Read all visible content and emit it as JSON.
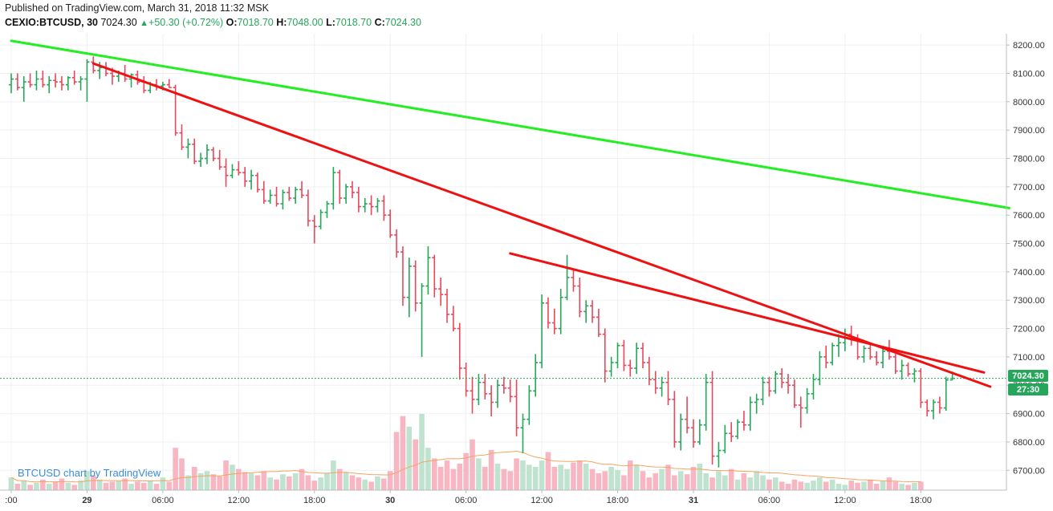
{
  "header": {
    "published": "Published on TradingView.com, March 31, 2018 11:32 MSK",
    "symbol": "CEXIO:BTCUSD, 30",
    "last": "7024.30",
    "change_arrow": "▲",
    "change": "+50.30 (+0.72%)",
    "o_label": "O:",
    "o_value": "7018.70",
    "h_label": "H:",
    "h_value": "7048.00",
    "l_label": "L:",
    "l_value": "7018.70",
    "c_label": "C:",
    "c_value": "7024.30"
  },
  "watermark": "BTCUSD chart by TradingView",
  "price_badge": "7024.30",
  "countdown_badge": "27:30",
  "colors": {
    "up": "#26a65b",
    "down": "#e8475c",
    "vol_up": "#bfe3cf",
    "vol_down": "#f7b6c2",
    "trend_green": "#22ee22",
    "trend_red": "#ee1111",
    "ma_line": "#f4a460",
    "grid": "#eef0f3"
  },
  "chart_data": {
    "type": "ohlc",
    "symbol": "CEXIO:BTCUSD",
    "interval": "30",
    "ylim": [
      6630,
      8240
    ],
    "y_ticks": [
      "8200.00",
      "8100.00",
      "8000.00",
      "7900.00",
      "7800.00",
      "7700.00",
      "7600.00",
      "7500.00",
      "7400.00",
      "7300.00",
      "7200.00",
      "7100.00",
      "7000.00",
      "6900.00",
      "6800.00",
      "6700.00"
    ],
    "y_tick_values": [
      8200,
      8100,
      8000,
      7900,
      7800,
      7700,
      7600,
      7500,
      7400,
      7300,
      7200,
      7100,
      7000,
      6900,
      6800,
      6700
    ],
    "x_ticks": [
      {
        "label": ":00",
        "bar": 0
      },
      {
        "label": "29",
        "bar": 12
      },
      {
        "label": "06:00",
        "bar": 24
      },
      {
        "label": "12:00",
        "bar": 36
      },
      {
        "label": "18:00",
        "bar": 48
      },
      {
        "label": "30",
        "bar": 60
      },
      {
        "label": "06:00",
        "bar": 72
      },
      {
        "label": "12:00",
        "bar": 84
      },
      {
        "label": "18:00",
        "bar": 96
      },
      {
        "label": "31",
        "bar": 108
      },
      {
        "label": "06:00",
        "bar": 120
      },
      {
        "label": "12:00",
        "bar": 132
      },
      {
        "label": "18:00",
        "bar": 144
      }
    ],
    "bars": [
      [
        8060,
        8100,
        8030,
        8080
      ],
      [
        8080,
        8100,
        8040,
        8050
      ],
      [
        8050,
        8090,
        8000,
        8070
      ],
      [
        8070,
        8100,
        8050,
        8060
      ],
      [
        8060,
        8110,
        8040,
        8080
      ],
      [
        8080,
        8110,
        8050,
        8060
      ],
      [
        8060,
        8090,
        8030,
        8075
      ],
      [
        8075,
        8100,
        8050,
        8070
      ],
      [
        8070,
        8090,
        8040,
        8060
      ],
      [
        8060,
        8090,
        8040,
        8085
      ],
      [
        8085,
        8110,
        8060,
        8070
      ],
      [
        8070,
        8090,
        8040,
        8080
      ],
      [
        8080,
        8150,
        8000,
        8140
      ],
      [
        8140,
        8160,
        8100,
        8110
      ],
      [
        8110,
        8140,
        8080,
        8120
      ],
      [
        8120,
        8140,
        8090,
        8100
      ],
      [
        8100,
        8120,
        8060,
        8090
      ],
      [
        8090,
        8110,
        8070,
        8100
      ],
      [
        8100,
        8130,
        8070,
        8080
      ],
      [
        8080,
        8100,
        8050,
        8095
      ],
      [
        8095,
        8110,
        8060,
        8070
      ],
      [
        8070,
        8090,
        8030,
        8040
      ],
      [
        8040,
        8070,
        8030,
        8060
      ],
      [
        8060,
        8080,
        8040,
        8055
      ],
      [
        8055,
        8070,
        8040,
        8060
      ],
      [
        8060,
        8080,
        8050,
        8050
      ],
      [
        8050,
        8060,
        7880,
        7890
      ],
      [
        7890,
        7920,
        7830,
        7840
      ],
      [
        7840,
        7870,
        7800,
        7850
      ],
      [
        7850,
        7870,
        7780,
        7790
      ],
      [
        7790,
        7820,
        7770,
        7800
      ],
      [
        7800,
        7850,
        7780,
        7830
      ],
      [
        7830,
        7840,
        7790,
        7800
      ],
      [
        7800,
        7830,
        7760,
        7770
      ],
      [
        7770,
        7800,
        7700,
        7740
      ],
      [
        7740,
        7780,
        7730,
        7760
      ],
      [
        7760,
        7790,
        7740,
        7750
      ],
      [
        7750,
        7770,
        7700,
        7720
      ],
      [
        7720,
        7760,
        7690,
        7740
      ],
      [
        7740,
        7750,
        7680,
        7690
      ],
      [
        7690,
        7720,
        7640,
        7650
      ],
      [
        7650,
        7690,
        7640,
        7670
      ],
      [
        7670,
        7700,
        7630,
        7640
      ],
      [
        7640,
        7690,
        7620,
        7680
      ],
      [
        7680,
        7700,
        7650,
        7660
      ],
      [
        7660,
        7700,
        7640,
        7690
      ],
      [
        7690,
        7720,
        7660,
        7670
      ],
      [
        7670,
        7690,
        7560,
        7580
      ],
      [
        7580,
        7600,
        7500,
        7560
      ],
      [
        7560,
        7620,
        7550,
        7610
      ],
      [
        7610,
        7650,
        7590,
        7640
      ],
      [
        7640,
        7770,
        7620,
        7750
      ],
      [
        7750,
        7760,
        7640,
        7660
      ],
      [
        7660,
        7710,
        7640,
        7700
      ],
      [
        7700,
        7720,
        7660,
        7680
      ],
      [
        7680,
        7700,
        7610,
        7630
      ],
      [
        7630,
        7660,
        7610,
        7640
      ],
      [
        7640,
        7670,
        7600,
        7630
      ],
      [
        7630,
        7660,
        7610,
        7650
      ],
      [
        7650,
        7670,
        7580,
        7600
      ],
      [
        7600,
        7620,
        7520,
        7530
      ],
      [
        7530,
        7550,
        7450,
        7470
      ],
      [
        7470,
        7490,
        7280,
        7310
      ],
      [
        7310,
        7450,
        7240,
        7420
      ],
      [
        7420,
        7440,
        7260,
        7290
      ],
      [
        7290,
        7360,
        7100,
        7350
      ],
      [
        7350,
        7490,
        7320,
        7450
      ],
      [
        7450,
        7460,
        7310,
        7340
      ],
      [
        7340,
        7380,
        7280,
        7320
      ],
      [
        7320,
        7340,
        7220,
        7250
      ],
      [
        7250,
        7280,
        7190,
        7200
      ],
      [
        7200,
        7220,
        7020,
        7060
      ],
      [
        7060,
        7080,
        6960,
        6980
      ],
      [
        6980,
        7030,
        6900,
        6950
      ],
      [
        6950,
        7040,
        6930,
        7010
      ],
      [
        7010,
        7040,
        6950,
        6970
      ],
      [
        6970,
        7000,
        6890,
        6940
      ],
      [
        6940,
        7020,
        6920,
        7000
      ],
      [
        7000,
        7030,
        6970,
        6990
      ],
      [
        6990,
        7020,
        6940,
        6960
      ],
      [
        6960,
        7020,
        6820,
        6850
      ],
      [
        6850,
        6900,
        6760,
        6880
      ],
      [
        6880,
        7000,
        6860,
        6980
      ],
      [
        6980,
        7110,
        6960,
        7080
      ],
      [
        7080,
        7320,
        7060,
        7290
      ],
      [
        7290,
        7310,
        7200,
        7220
      ],
      [
        7220,
        7270,
        7180,
        7200
      ],
      [
        7200,
        7340,
        7180,
        7310
      ],
      [
        7310,
        7460,
        7300,
        7380
      ],
      [
        7380,
        7410,
        7330,
        7350
      ],
      [
        7350,
        7380,
        7240,
        7260
      ],
      [
        7260,
        7300,
        7220,
        7280
      ],
      [
        7280,
        7300,
        7220,
        7240
      ],
      [
        7240,
        7270,
        7170,
        7180
      ],
      [
        7180,
        7200,
        7010,
        7050
      ],
      [
        7050,
        7100,
        7030,
        7080
      ],
      [
        7080,
        7150,
        7060,
        7140
      ],
      [
        7140,
        7160,
        7050,
        7070
      ],
      [
        7070,
        7090,
        7030,
        7060
      ],
      [
        7060,
        7150,
        7040,
        7130
      ],
      [
        7130,
        7150,
        7060,
        7080
      ],
      [
        7080,
        7100,
        7000,
        7020
      ],
      [
        7020,
        7050,
        6970,
        6990
      ],
      [
        6990,
        7030,
        6960,
        7010
      ],
      [
        7010,
        7050,
        6930,
        6950
      ],
      [
        6950,
        6980,
        6780,
        6800
      ],
      [
        6800,
        6900,
        6770,
        6880
      ],
      [
        6880,
        6960,
        6830,
        6850
      ],
      [
        6850,
        6880,
        6780,
        6800
      ],
      [
        6800,
        6880,
        6790,
        6860
      ],
      [
        6860,
        7040,
        6840,
        7010
      ],
      [
        7010,
        7050,
        6720,
        6750
      ],
      [
        6750,
        6800,
        6710,
        6770
      ],
      [
        6770,
        6860,
        6760,
        6830
      ],
      [
        6830,
        6870,
        6800,
        6820
      ],
      [
        6820,
        6880,
        6810,
        6870
      ],
      [
        6870,
        6910,
        6840,
        6860
      ],
      [
        6860,
        6960,
        6840,
        6940
      ],
      [
        6940,
        6970,
        6900,
        6950
      ],
      [
        6950,
        7030,
        6930,
        7010
      ],
      [
        7010,
        7030,
        6960,
        6980
      ],
      [
        6980,
        7050,
        6970,
        7040
      ],
      [
        7040,
        7060,
        6990,
        7010
      ],
      [
        7010,
        7040,
        6970,
        7000
      ],
      [
        7000,
        7020,
        6920,
        6930
      ],
      [
        6930,
        6960,
        6850,
        6920
      ],
      [
        6920,
        6990,
        6900,
        6970
      ],
      [
        6970,
        7040,
        6950,
        7020
      ],
      [
        7020,
        7120,
        7000,
        7100
      ],
      [
        7100,
        7140,
        7060,
        7080
      ],
      [
        7080,
        7150,
        7070,
        7140
      ],
      [
        7140,
        7180,
        7100,
        7150
      ],
      [
        7150,
        7200,
        7120,
        7180
      ],
      [
        7180,
        7210,
        7140,
        7160
      ],
      [
        7160,
        7180,
        7090,
        7100
      ],
      [
        7100,
        7140,
        7080,
        7130
      ],
      [
        7130,
        7150,
        7090,
        7100
      ],
      [
        7100,
        7120,
        7070,
        7080
      ],
      [
        7080,
        7130,
        7060,
        7120
      ],
      [
        7120,
        7160,
        7090,
        7100
      ],
      [
        7100,
        7110,
        7040,
        7050
      ],
      [
        7050,
        7090,
        7020,
        7070
      ],
      [
        7070,
        7080,
        7030,
        7040
      ],
      [
        7040,
        7060,
        7010,
        7050
      ],
      [
        7050,
        7060,
        6920,
        6940
      ],
      [
        6940,
        6950,
        6890,
        6910
      ],
      [
        6910,
        6950,
        6880,
        6940
      ],
      [
        6940,
        6960,
        6900,
        6920
      ],
      [
        6920,
        7030,
        6910,
        7018.7
      ],
      [
        7018.7,
        7048,
        7018.7,
        7024.3
      ]
    ],
    "volume_note": "volume bars rendered proportional, no axis shown",
    "volume": [
      12,
      6,
      9,
      5,
      7,
      10,
      6,
      8,
      11,
      7,
      5,
      9,
      18,
      14,
      10,
      7,
      8,
      9,
      11,
      6,
      8,
      7,
      9,
      6,
      12,
      8,
      40,
      30,
      14,
      22,
      16,
      18,
      15,
      13,
      28,
      24,
      20,
      17,
      16,
      14,
      18,
      12,
      10,
      15,
      13,
      16,
      20,
      14,
      9,
      12,
      16,
      28,
      20,
      17,
      14,
      12,
      10,
      8,
      13,
      11,
      18,
      55,
      70,
      60,
      48,
      72,
      40,
      30,
      22,
      28,
      20,
      25,
      35,
      48,
      30,
      22,
      38,
      25,
      20,
      18,
      30,
      28,
      24,
      22,
      28,
      36,
      22,
      24,
      20,
      26,
      28,
      25,
      20,
      16,
      18,
      22,
      19,
      14,
      28,
      24,
      18,
      12,
      16,
      20,
      24,
      14,
      18,
      15,
      22,
      25,
      16,
      12,
      18,
      14,
      20,
      10,
      16,
      12,
      18,
      14,
      10,
      12,
      8,
      6,
      10,
      8,
      7,
      9,
      12,
      8,
      10,
      6,
      5,
      9,
      7,
      8,
      10,
      6,
      9,
      12,
      8,
      6,
      5,
      7,
      8
    ],
    "trendlines": [
      {
        "color": "green",
        "from": [
          0,
          8215
        ],
        "to": [
          158,
          7625
        ]
      },
      {
        "color": "red",
        "from": [
          13,
          8135
        ],
        "to": [
          155,
          6995
        ]
      },
      {
        "color": "red",
        "from": [
          79,
          7465
        ],
        "to": [
          154,
          7045
        ]
      }
    ]
  }
}
